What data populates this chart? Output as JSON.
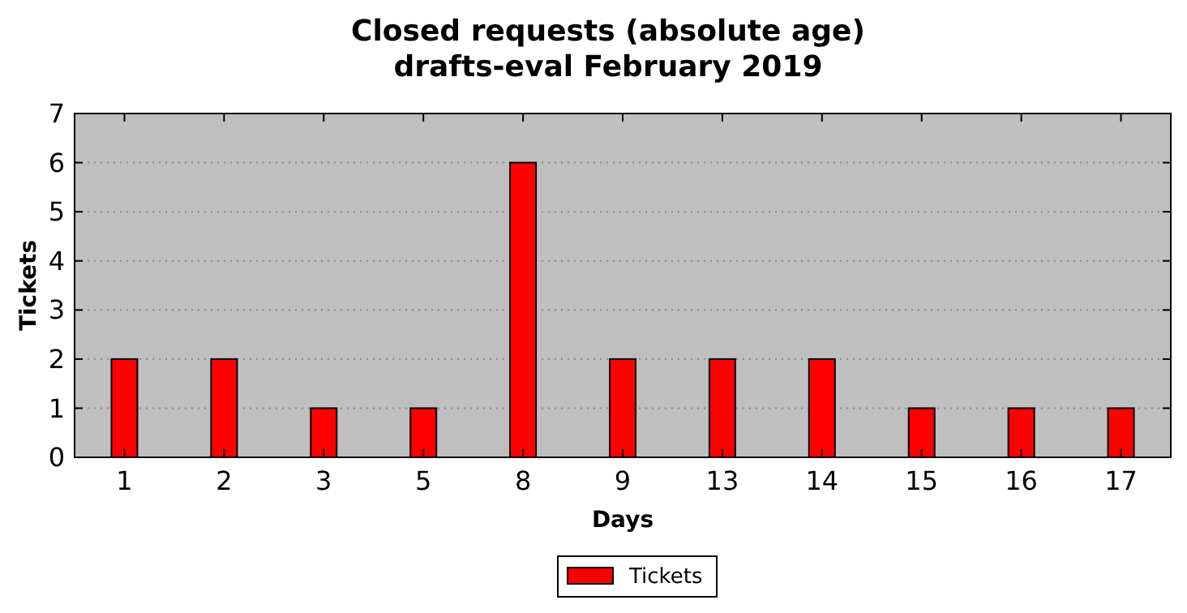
{
  "chart_data": {
    "type": "bar",
    "title": "Closed requests (absolute age)",
    "subtitle": "drafts-eval February 2019",
    "xlabel": "Days",
    "ylabel": "Tickets",
    "categories": [
      "1",
      "2",
      "3",
      "5",
      "8",
      "9",
      "13",
      "14",
      "15",
      "16",
      "17"
    ],
    "series": [
      {
        "name": "Tickets",
        "color": "#ff0000",
        "values": [
          2,
          2,
          1,
          1,
          6,
          2,
          2,
          2,
          1,
          1,
          1
        ]
      }
    ],
    "ylim": [
      0,
      7
    ],
    "yticks": [
      0,
      1,
      2,
      3,
      4,
      5,
      6,
      7
    ],
    "grid": "y",
    "legend": "bottom"
  }
}
